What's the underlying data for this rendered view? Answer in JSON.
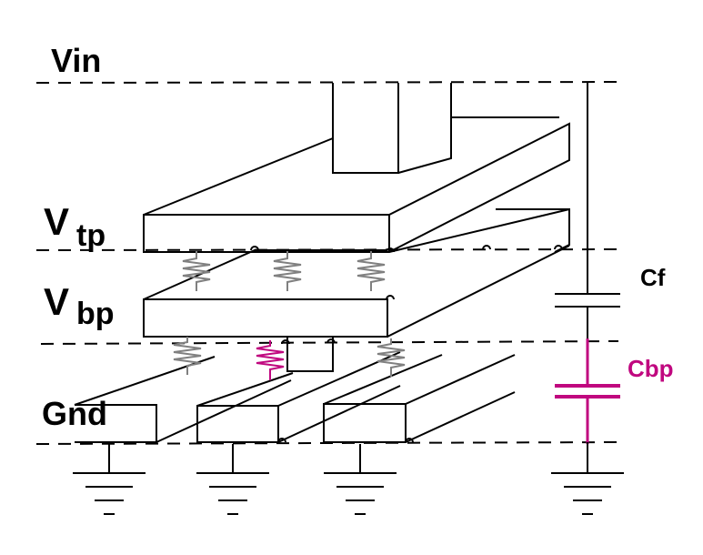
{
  "labels": {
    "vin": "Vin",
    "vtp_main": "V",
    "vtp_sub": "tp",
    "vbp_main": "V",
    "vbp_sub": "bp",
    "gnd": "Gnd",
    "cf": "Cf",
    "cbp": "Cbp"
  },
  "colors": {
    "line": "#000000",
    "resistor": "#808080",
    "highlight": "#c0077f"
  }
}
